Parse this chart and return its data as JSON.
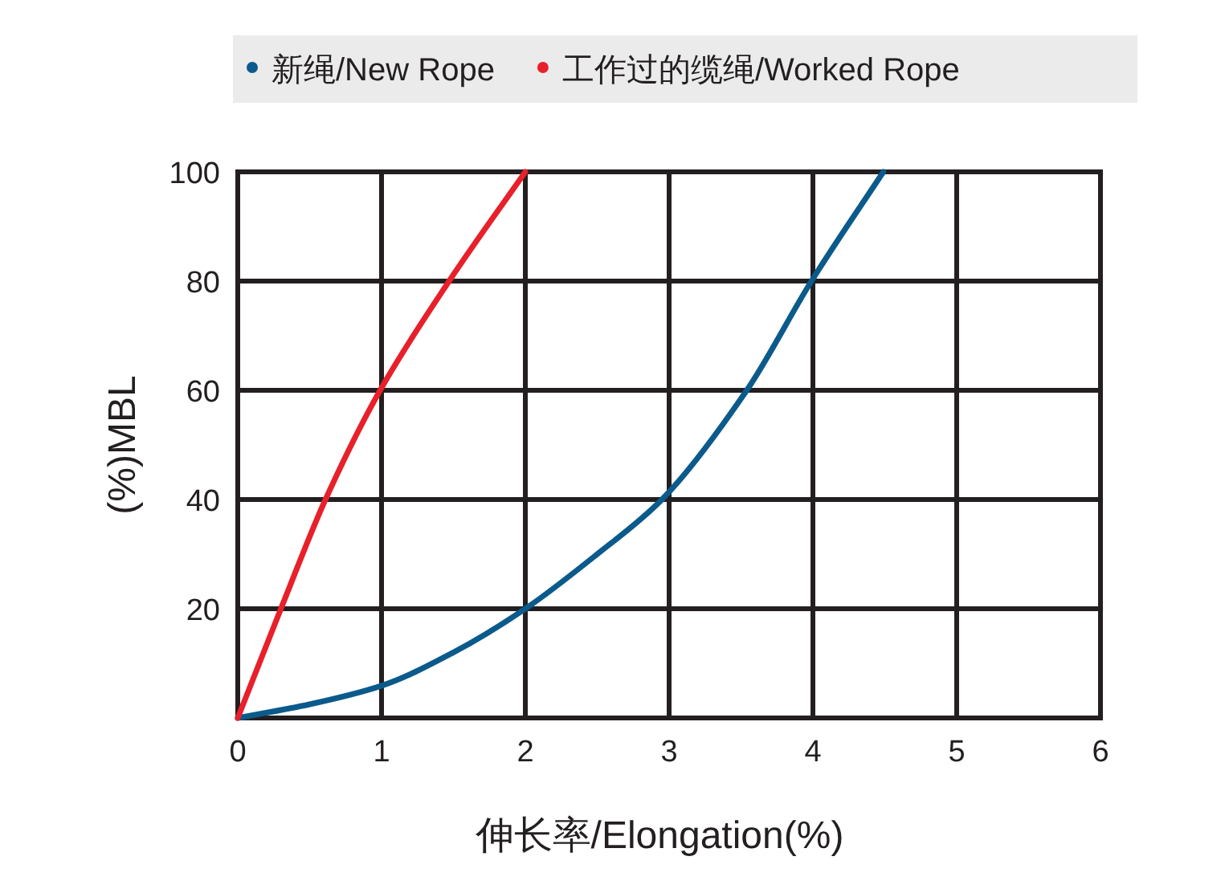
{
  "chart_data": {
    "type": "line",
    "xlabel": "伸长率/Elongation(%)",
    "ylabel": "(%)MBL",
    "xlim": [
      0,
      6
    ],
    "xticks": [
      0,
      1,
      2,
      3,
      4,
      5,
      6
    ],
    "ylim": [
      0,
      100
    ],
    "yticks": [
      {
        "value": 0,
        "label": null
      },
      20,
      40,
      60,
      80,
      100
    ],
    "grid": true,
    "legend": "top",
    "marker": "none",
    "line_style": "solid",
    "series": [
      {
        "name": "新绳/New Rope",
        "color": "#0b5a8c",
        "x": [
          0,
          0.5,
          1,
          1.5,
          2,
          2.5,
          2.95,
          3.54,
          3.99,
          4.49
        ],
        "values": [
          0,
          2.5,
          5.9,
          12,
          20,
          30,
          40,
          60,
          80,
          100
        ]
      },
      {
        "name": "工作过的缆绳/Worked Rope",
        "color": "#e8202a",
        "x": [
          0,
          0.3,
          0.61,
          0.99,
          1.47,
          2.0
        ],
        "values": [
          0,
          20,
          40,
          60,
          80,
          100
        ]
      }
    ]
  }
}
